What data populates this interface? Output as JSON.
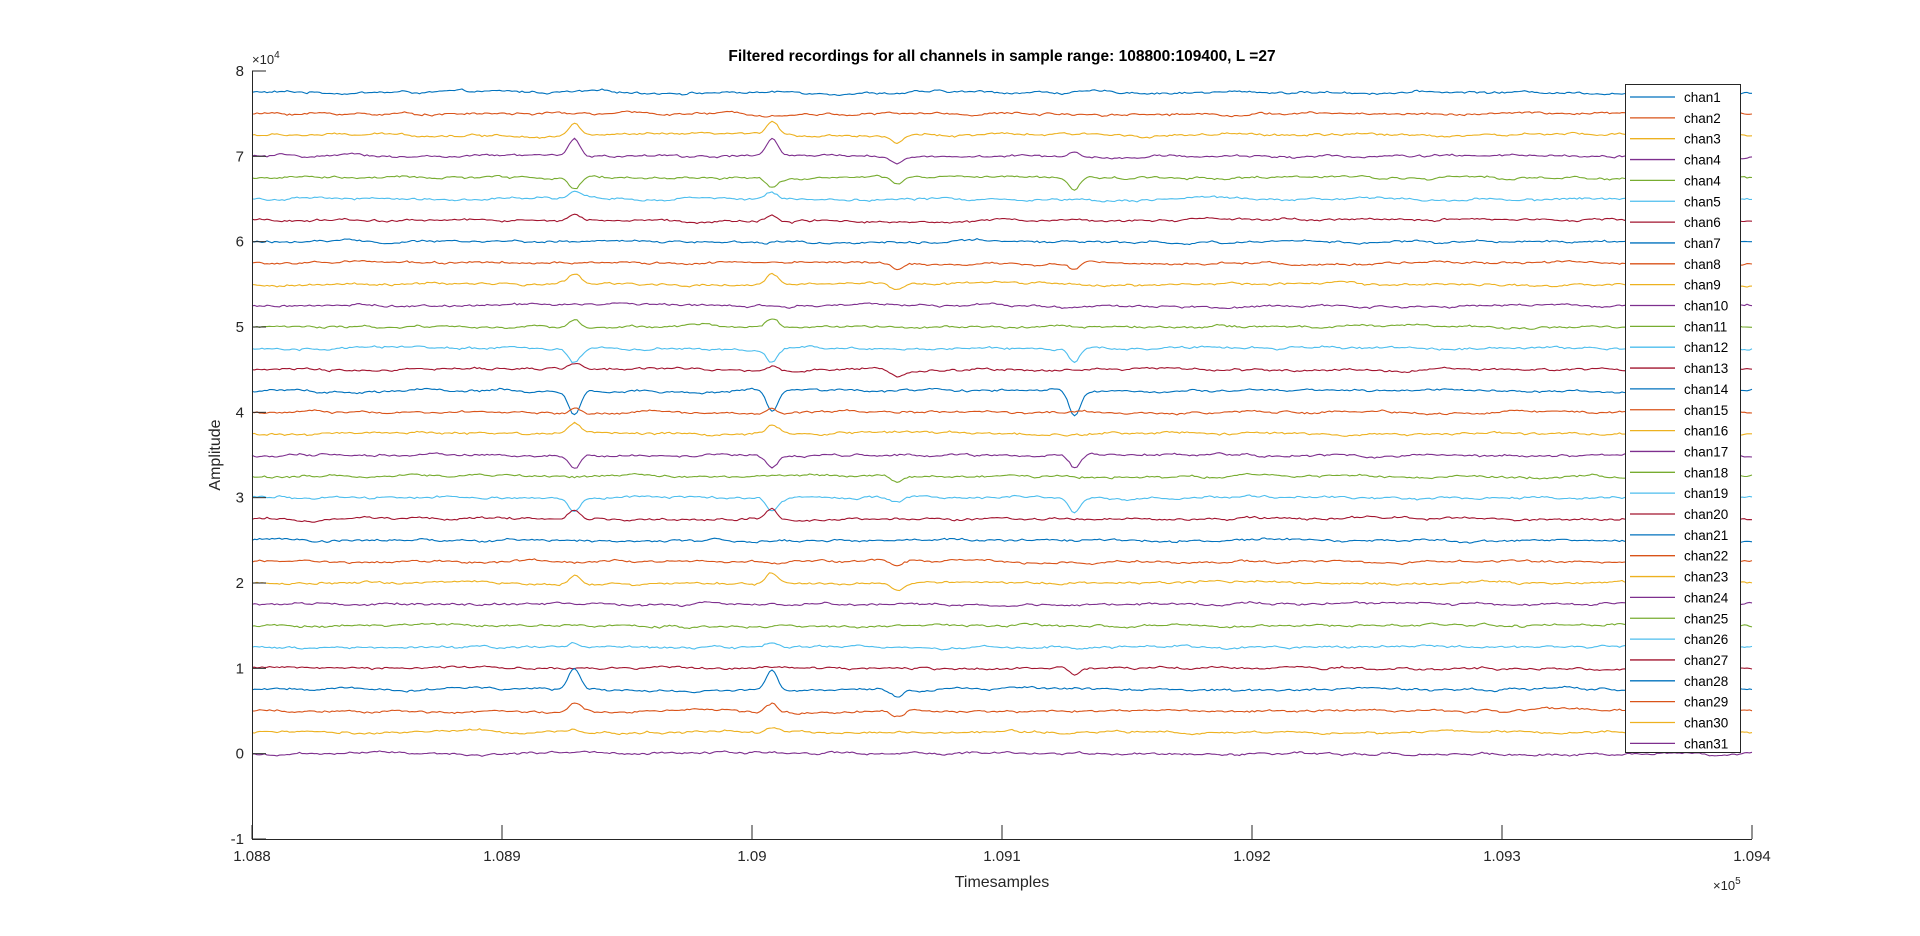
{
  "chart_data": {
    "type": "line",
    "title": "Filtered recordings for all channels in sample range: 108800:109400, L =27",
    "xlabel": "Timesamples",
    "ylabel": "Amplitude",
    "xlim": [
      108800,
      109400
    ],
    "ylim": [
      -10000,
      80000
    ],
    "x_exponent_label": "×10",
    "x_exponent_power": "5",
    "y_exponent_label": "×10",
    "y_exponent_power": "4",
    "x_ticks": [
      108800,
      108900,
      109000,
      109100,
      109200,
      109300,
      109400
    ],
    "x_tick_labels": [
      "1.088",
      "1.089",
      "1.09",
      "1.091",
      "1.092",
      "1.093",
      "1.094"
    ],
    "y_ticks": [
      -10000,
      0,
      10000,
      20000,
      30000,
      40000,
      50000,
      60000,
      70000,
      80000
    ],
    "y_tick_labels": [
      "-1",
      "0",
      "1",
      "2",
      "3",
      "4",
      "5",
      "6",
      "7",
      "8"
    ],
    "grid": false,
    "legend_position": "top-right",
    "spike_times": [
      108929,
      109008,
      109058,
      109129
    ],
    "series": [
      {
        "name": "chan1",
        "baseline": 77500,
        "color": "#0072BD",
        "spikes": [
          0,
          0,
          0,
          0
        ]
      },
      {
        "name": "chan2",
        "baseline": 75000,
        "color": "#D95319",
        "spikes": [
          0,
          0,
          0,
          0
        ]
      },
      {
        "name": "chan3",
        "baseline": 72500,
        "color": "#EDB120",
        "spikes": [
          1300,
          1400,
          -800,
          0
        ]
      },
      {
        "name": "chan4",
        "baseline": 70000,
        "color": "#7E2F8E",
        "spikes": [
          2000,
          2000,
          -700,
          600
        ]
      },
      {
        "name": "chan4",
        "baseline": 67500,
        "color": "#77AC30",
        "spikes": [
          -1500,
          -1000,
          -800,
          -1500
        ]
      },
      {
        "name": "chan5",
        "baseline": 65000,
        "color": "#4DBEEE",
        "spikes": [
          700,
          800,
          0,
          0
        ]
      },
      {
        "name": "chan6",
        "baseline": 62500,
        "color": "#A2142F",
        "spikes": [
          600,
          600,
          0,
          0
        ]
      },
      {
        "name": "chan7",
        "baseline": 60000,
        "color": "#0072BD",
        "spikes": [
          0,
          0,
          0,
          0
        ]
      },
      {
        "name": "chan8",
        "baseline": 57500,
        "color": "#D95319",
        "spikes": [
          0,
          0,
          -700,
          -800
        ]
      },
      {
        "name": "chan9",
        "baseline": 55000,
        "color": "#EDB120",
        "spikes": [
          1200,
          1200,
          -700,
          0
        ]
      },
      {
        "name": "chan10",
        "baseline": 52500,
        "color": "#7E2F8E",
        "spikes": [
          0,
          0,
          0,
          0
        ]
      },
      {
        "name": "chan11",
        "baseline": 50000,
        "color": "#77AC30",
        "spikes": [
          1000,
          1000,
          0,
          0
        ]
      },
      {
        "name": "chan12",
        "baseline": 47500,
        "color": "#4DBEEE",
        "spikes": [
          -1500,
          -1500,
          0,
          -1500
        ]
      },
      {
        "name": "chan13",
        "baseline": 45000,
        "color": "#A2142F",
        "spikes": [
          600,
          600,
          -700,
          0
        ]
      },
      {
        "name": "chan14",
        "baseline": 42500,
        "color": "#0072BD",
        "spikes": [
          -2800,
          -2500,
          0,
          -3000
        ]
      },
      {
        "name": "chan15",
        "baseline": 40000,
        "color": "#D95319",
        "spikes": [
          600,
          600,
          0,
          0
        ]
      },
      {
        "name": "chan16",
        "baseline": 37500,
        "color": "#EDB120",
        "spikes": [
          1000,
          1000,
          0,
          0
        ]
      },
      {
        "name": "chan17",
        "baseline": 35000,
        "color": "#7E2F8E",
        "spikes": [
          -1500,
          -1500,
          0,
          -1500
        ]
      },
      {
        "name": "chan18",
        "baseline": 32500,
        "color": "#77AC30",
        "spikes": [
          0,
          0,
          -800,
          0
        ]
      },
      {
        "name": "chan19",
        "baseline": 30000,
        "color": "#4DBEEE",
        "spikes": [
          -1500,
          -1500,
          -700,
          -1700
        ]
      },
      {
        "name": "chan20",
        "baseline": 27500,
        "color": "#A2142F",
        "spikes": [
          1300,
          1200,
          0,
          0
        ]
      },
      {
        "name": "chan21",
        "baseline": 25000,
        "color": "#0072BD",
        "spikes": [
          0,
          0,
          0,
          0
        ]
      },
      {
        "name": "chan22",
        "baseline": 22500,
        "color": "#D95319",
        "spikes": [
          0,
          0,
          -700,
          0
        ]
      },
      {
        "name": "chan23",
        "baseline": 20000,
        "color": "#EDB120",
        "spikes": [
          1000,
          1100,
          -800,
          0
        ]
      },
      {
        "name": "chan24",
        "baseline": 17500,
        "color": "#7E2F8E",
        "spikes": [
          0,
          0,
          0,
          0
        ]
      },
      {
        "name": "chan25",
        "baseline": 15000,
        "color": "#77AC30",
        "spikes": [
          0,
          0,
          0,
          0
        ]
      },
      {
        "name": "chan26",
        "baseline": 12500,
        "color": "#4DBEEE",
        "spikes": [
          500,
          500,
          0,
          0
        ]
      },
      {
        "name": "chan27",
        "baseline": 10000,
        "color": "#A2142F",
        "spikes": [
          0,
          0,
          0,
          -800
        ]
      },
      {
        "name": "chan28",
        "baseline": 7500,
        "color": "#0072BD",
        "spikes": [
          2500,
          2500,
          -1000,
          0
        ]
      },
      {
        "name": "chan29",
        "baseline": 5000,
        "color": "#D95319",
        "spikes": [
          1000,
          1000,
          -800,
          0
        ]
      },
      {
        "name": "chan30",
        "baseline": 2500,
        "color": "#EDB120",
        "spikes": [
          500,
          500,
          0,
          0
        ]
      },
      {
        "name": "chan31",
        "baseline": 0,
        "color": "#7E2F8E",
        "spikes": [
          0,
          0,
          0,
          0
        ]
      }
    ]
  }
}
